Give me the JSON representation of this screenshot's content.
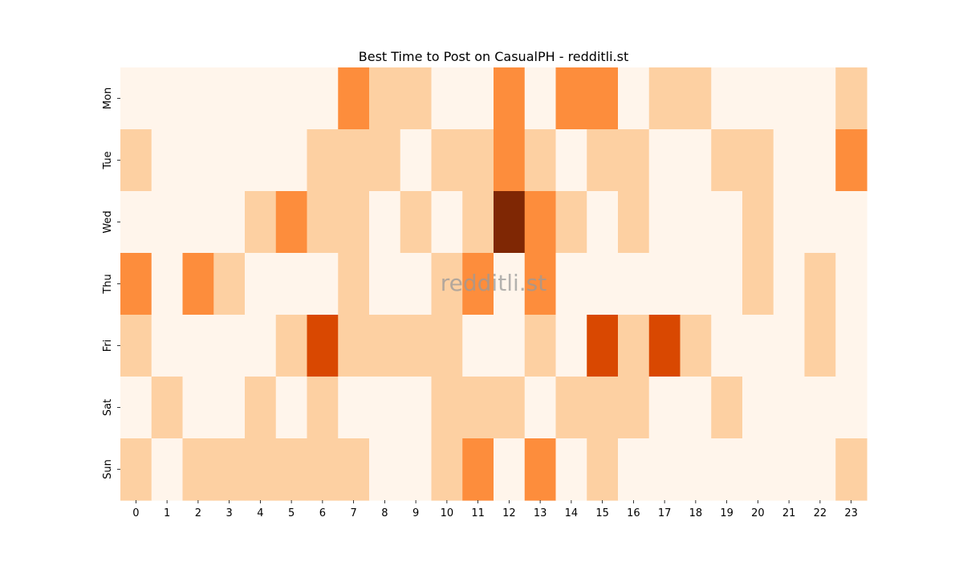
{
  "chart_data": {
    "type": "heatmap",
    "title": "Best Time to Post on CasualPH - redditli.st",
    "watermark": "redditli.st",
    "x_categories": [
      "0",
      "1",
      "2",
      "3",
      "4",
      "5",
      "6",
      "7",
      "8",
      "9",
      "10",
      "11",
      "12",
      "13",
      "14",
      "15",
      "16",
      "17",
      "18",
      "19",
      "20",
      "21",
      "22",
      "23"
    ],
    "y_categories": [
      "Mon",
      "Tue",
      "Wed",
      "Thu",
      "Fri",
      "Sat",
      "Sun"
    ],
    "values": [
      [
        0,
        0,
        0,
        0,
        0,
        0,
        0,
        2,
        1,
        1,
        0,
        0,
        2,
        0,
        2,
        2,
        0,
        1,
        1,
        0,
        0,
        0,
        0,
        1
      ],
      [
        1,
        0,
        0,
        0,
        0,
        0,
        1,
        1,
        1,
        0,
        1,
        1,
        2,
        1,
        0,
        1,
        1,
        0,
        0,
        1,
        1,
        0,
        0,
        2
      ],
      [
        0,
        0,
        0,
        0,
        1,
        2,
        1,
        1,
        0,
        1,
        0,
        1,
        5,
        2,
        1,
        0,
        1,
        0,
        0,
        0,
        1,
        0,
        0,
        0
      ],
      [
        2,
        0,
        2,
        1,
        0,
        0,
        0,
        1,
        0,
        0,
        1,
        2,
        0,
        2,
        0,
        0,
        0,
        0,
        0,
        0,
        1,
        0,
        1,
        0
      ],
      [
        1,
        0,
        0,
        0,
        0,
        1,
        3,
        1,
        1,
        1,
        1,
        0,
        0,
        1,
        0,
        3,
        1,
        3,
        1,
        0,
        0,
        0,
        1,
        0
      ],
      [
        0,
        1,
        0,
        0,
        1,
        0,
        1,
        0,
        0,
        0,
        1,
        1,
        1,
        0,
        1,
        1,
        1,
        0,
        0,
        1,
        0,
        0,
        0,
        0
      ],
      [
        1,
        0,
        1,
        1,
        1,
        1,
        1,
        1,
        0,
        0,
        1,
        2,
        0,
        2,
        0,
        1,
        0,
        0,
        0,
        0,
        0,
        0,
        0,
        1
      ]
    ],
    "color_scale": {
      "0": "#fff5eb",
      "1": "#fdd0a2",
      "2": "#fd8d3c",
      "3": "#d94801",
      "5": "#7f2704"
    },
    "colorbar": false,
    "grid": false
  }
}
